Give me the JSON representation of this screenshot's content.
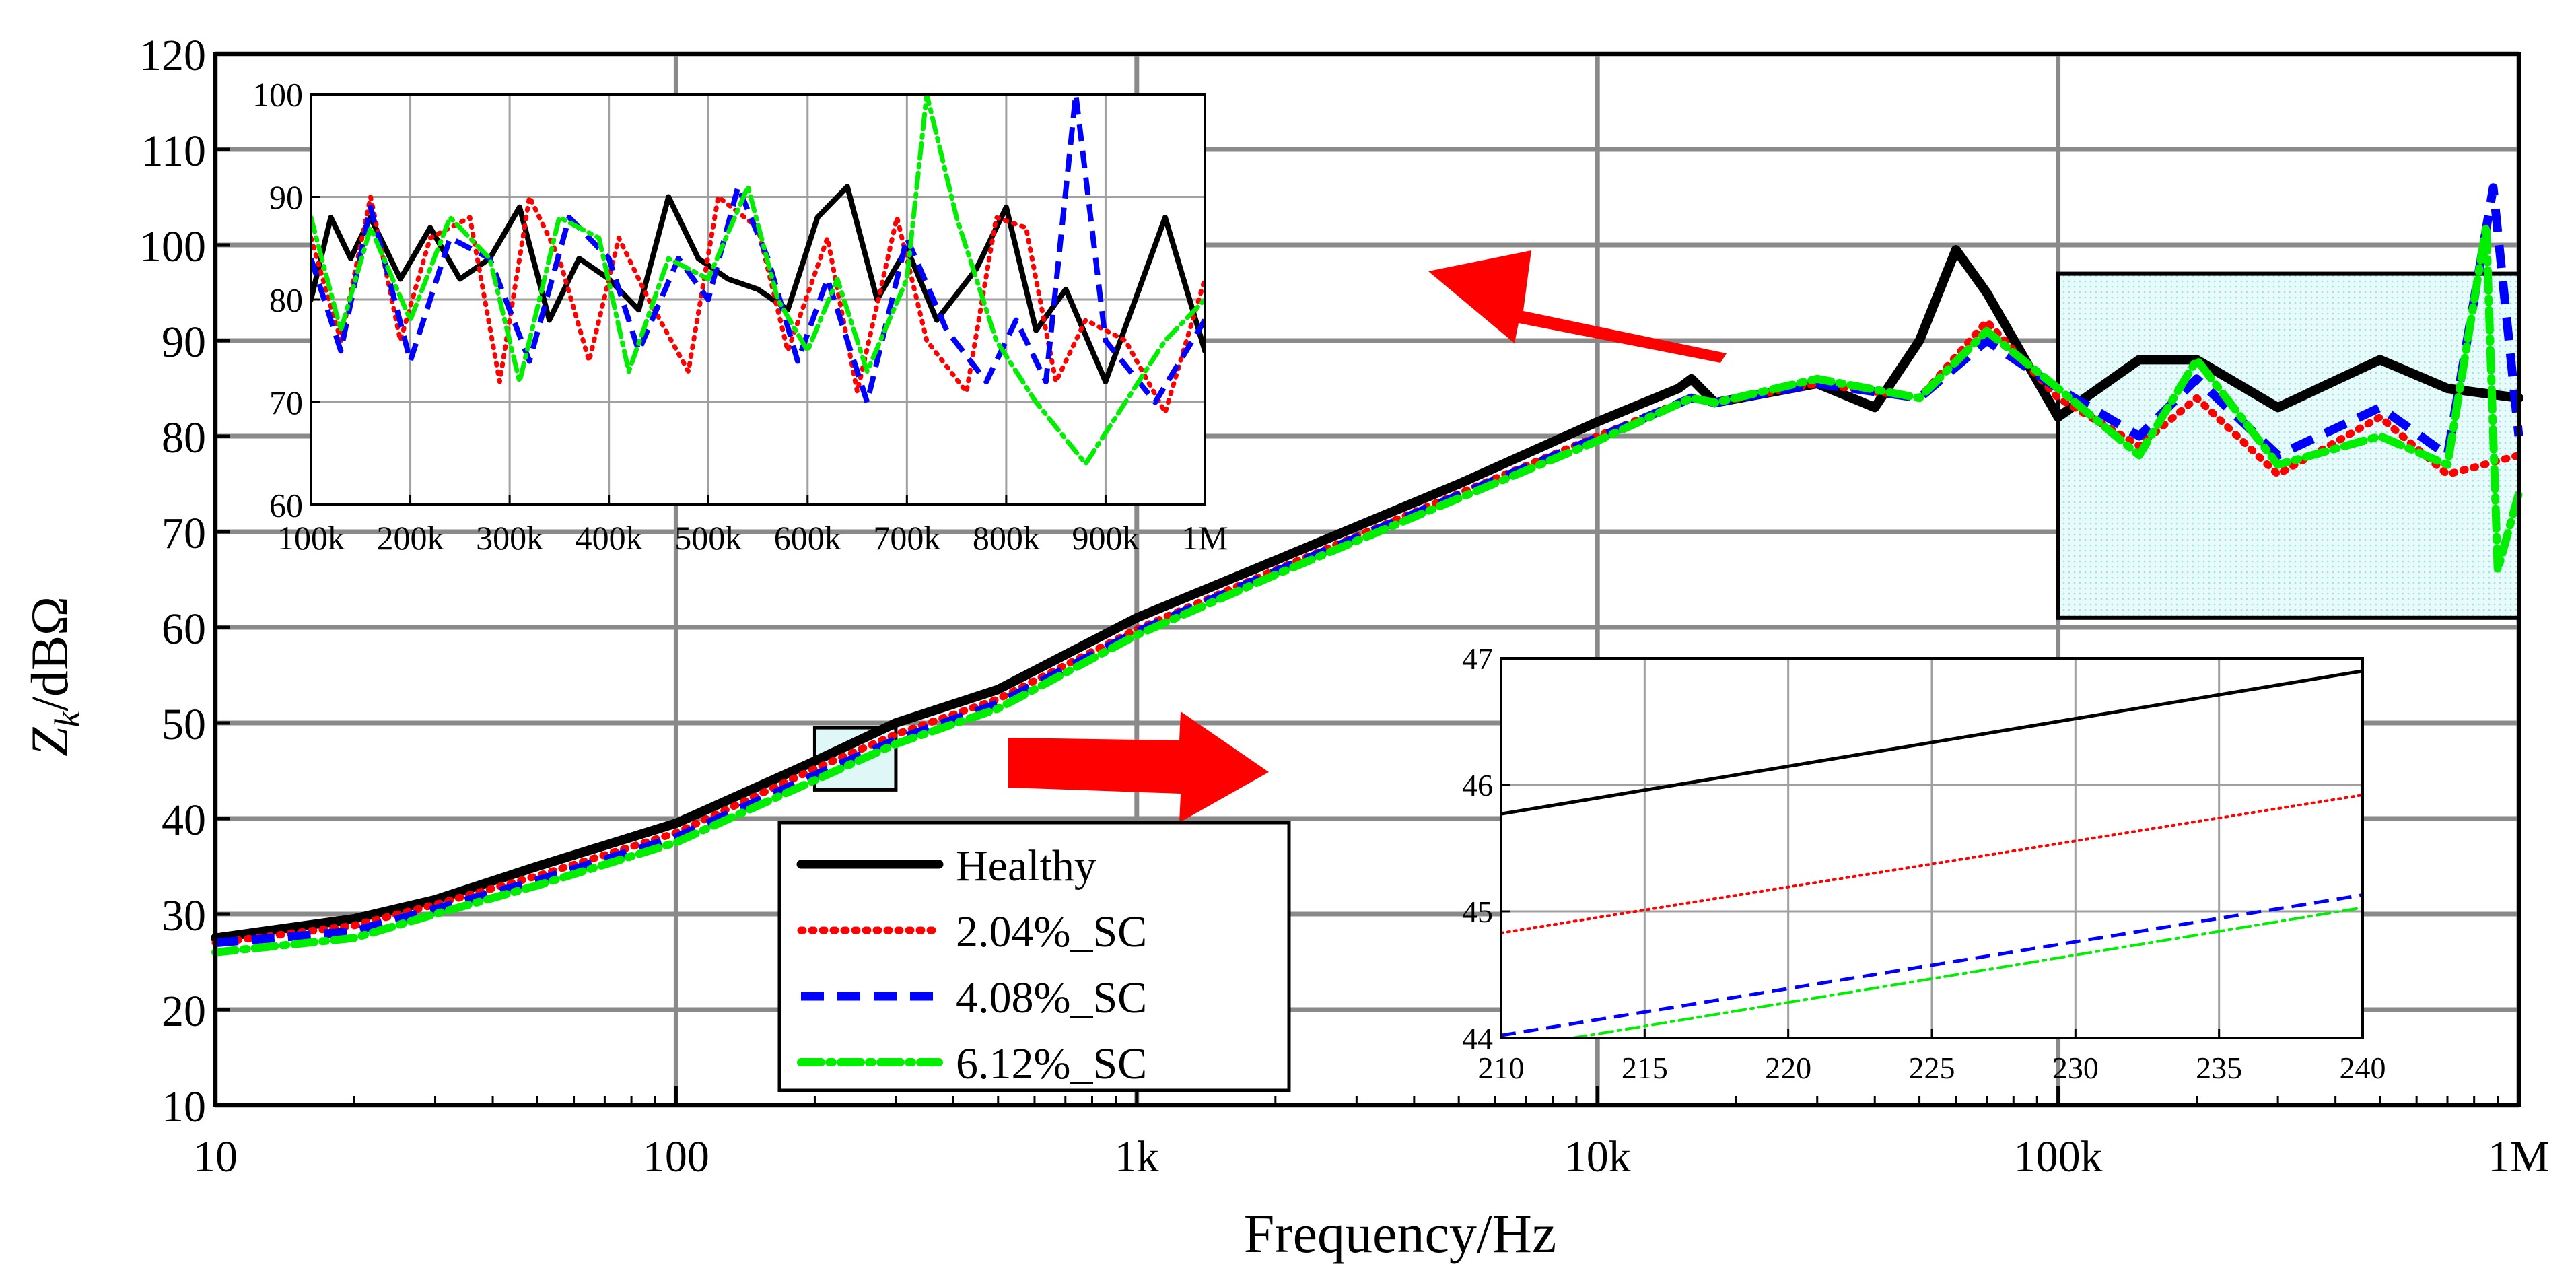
{
  "chart_data": {
    "type": "line",
    "xscale": "log",
    "xlim": [
      10,
      1000000
    ],
    "ylim": [
      10,
      120
    ],
    "xlabel": "Frequency/Hz",
    "ylabel_main": "Z",
    "ylabel_sub": "k",
    "ylabel_unit": "/dBΩ",
    "x_ticks": [
      10,
      100,
      1000,
      10000,
      100000,
      1000000
    ],
    "x_tick_labels": [
      "10",
      "100",
      "1k",
      "10k",
      "100k",
      "1M"
    ],
    "y_ticks": [
      10,
      20,
      30,
      40,
      50,
      60,
      70,
      80,
      90,
      100,
      110,
      120
    ],
    "y_tick_labels": [
      "10",
      "20",
      "30",
      "40",
      "50",
      "60",
      "70",
      "80",
      "90",
      "100",
      "110",
      "120"
    ],
    "legend": [
      "Healthy",
      "2.04%_SC",
      "4.08%_SC",
      "6.12%_SC"
    ],
    "series": [
      {
        "name": "Healthy",
        "color": "#000000",
        "style": "solid",
        "points": [
          [
            10,
            27.5
          ],
          [
            20,
            29.5
          ],
          [
            30,
            31.5
          ],
          [
            50,
            35
          ],
          [
            100,
            39.5
          ],
          [
            200,
            46
          ],
          [
            300,
            50
          ],
          [
            500,
            53.5
          ],
          [
            1000,
            61
          ],
          [
            2000,
            67
          ],
          [
            5000,
            75
          ],
          [
            10000,
            81.5
          ],
          [
            15000,
            85
          ],
          [
            16000,
            86
          ],
          [
            18000,
            83.5
          ],
          [
            30000,
            85.5
          ],
          [
            40000,
            83
          ],
          [
            50000,
            90
          ],
          [
            60000,
            99.5
          ],
          [
            70000,
            95
          ],
          [
            100000,
            82
          ],
          [
            150000,
            88
          ],
          [
            200000,
            88
          ],
          [
            300000,
            83
          ],
          [
            500000,
            88
          ],
          [
            700000,
            85
          ],
          [
            1000000,
            84
          ]
        ]
      },
      {
        "name": "2.04%_SC",
        "color": "#ff0000",
        "style": "dotted",
        "points": [
          [
            10,
            27
          ],
          [
            20,
            28.8
          ],
          [
            30,
            31
          ],
          [
            50,
            34
          ],
          [
            100,
            38.5
          ],
          [
            200,
            45.2
          ],
          [
            300,
            48.8
          ],
          [
            500,
            52.5
          ],
          [
            1000,
            59.8
          ],
          [
            2000,
            66
          ],
          [
            5000,
            74
          ],
          [
            10000,
            80
          ],
          [
            16000,
            84
          ],
          [
            18000,
            83.5
          ],
          [
            30000,
            85.5
          ],
          [
            50000,
            84
          ],
          [
            70000,
            92
          ],
          [
            100000,
            84
          ],
          [
            150000,
            79
          ],
          [
            200000,
            84
          ],
          [
            300000,
            76
          ],
          [
            500000,
            82
          ],
          [
            700000,
            76
          ],
          [
            1000000,
            78
          ]
        ]
      },
      {
        "name": "4.08%_SC",
        "color": "#0000ff",
        "style": "dashed",
        "points": [
          [
            10,
            27
          ],
          [
            20,
            28.2
          ],
          [
            30,
            30.5
          ],
          [
            50,
            33.5
          ],
          [
            100,
            38
          ],
          [
            200,
            44.5
          ],
          [
            300,
            48.2
          ],
          [
            500,
            52
          ],
          [
            1000,
            59.5
          ],
          [
            2000,
            65.8
          ],
          [
            5000,
            73.8
          ],
          [
            10000,
            79.8
          ],
          [
            16000,
            84
          ],
          [
            18000,
            83.5
          ],
          [
            30000,
            85.5
          ],
          [
            50000,
            84
          ],
          [
            70000,
            90
          ],
          [
            100000,
            85
          ],
          [
            150000,
            80
          ],
          [
            200000,
            86
          ],
          [
            300000,
            78
          ],
          [
            500000,
            83
          ],
          [
            700000,
            78
          ],
          [
            880000,
            106
          ],
          [
            1000000,
            80
          ]
        ]
      },
      {
        "name": "6.12%_SC",
        "color": "#00ee00",
        "style": "dashdot",
        "points": [
          [
            10,
            26
          ],
          [
            20,
            27.5
          ],
          [
            30,
            30
          ],
          [
            50,
            33
          ],
          [
            100,
            37.5
          ],
          [
            200,
            44
          ],
          [
            300,
            47.8
          ],
          [
            500,
            51.5
          ],
          [
            1000,
            59.2
          ],
          [
            2000,
            65.5
          ],
          [
            5000,
            73.5
          ],
          [
            10000,
            79.5
          ],
          [
            16000,
            84
          ],
          [
            18000,
            83.5
          ],
          [
            30000,
            86
          ],
          [
            50000,
            84
          ],
          [
            70000,
            91
          ],
          [
            100000,
            85
          ],
          [
            150000,
            78
          ],
          [
            200000,
            88
          ],
          [
            300000,
            77
          ],
          [
            500000,
            80
          ],
          [
            700000,
            77
          ],
          [
            850000,
            102
          ],
          [
            900000,
            66
          ],
          [
            1000000,
            74
          ]
        ]
      }
    ],
    "insets": [
      {
        "name": "inset-high-frequency",
        "xlim": [
          100000,
          1000000
        ],
        "ylim": [
          60,
          100
        ],
        "x_tick_labels": [
          "100k",
          "200k",
          "300k",
          "400k",
          "500k",
          "600k",
          "700k",
          "800k",
          "900k",
          "1M"
        ],
        "y_tick_labels": [
          "60",
          "70",
          "80",
          "90",
          "100"
        ],
        "series": [
          {
            "name": "Healthy",
            "values": [
              [
                100000,
                80
              ],
              [
                120000,
                88
              ],
              [
                140000,
                84
              ],
              [
                160000,
                88
              ],
              [
                190000,
                82
              ],
              [
                220000,
                87
              ],
              [
                250000,
                82
              ],
              [
                280000,
                84
              ],
              [
                310000,
                89
              ],
              [
                340000,
                78
              ],
              [
                370000,
                84
              ],
              [
                400000,
                82
              ],
              [
                430000,
                79
              ],
              [
                460000,
                90
              ],
              [
                490000,
                84
              ],
              [
                520000,
                82
              ],
              [
                550000,
                81
              ],
              [
                580000,
                79
              ],
              [
                610000,
                88
              ],
              [
                640000,
                91
              ],
              [
                670000,
                80
              ],
              [
                700000,
                85
              ],
              [
                730000,
                78
              ],
              [
                770000,
                83
              ],
              [
                800000,
                89
              ],
              [
                830000,
                77
              ],
              [
                860000,
                81
              ],
              [
                900000,
                72
              ],
              [
                930000,
                80
              ],
              [
                960000,
                88
              ],
              [
                1000000,
                75
              ]
            ]
          },
          {
            "name": "2.04%_SC",
            "values": [
              [
                100000,
                86
              ],
              [
                130000,
                76
              ],
              [
                160000,
                90
              ],
              [
                190000,
                76
              ],
              [
                220000,
                86
              ],
              [
                260000,
                88
              ],
              [
                290000,
                72
              ],
              [
                320000,
                90
              ],
              [
                350000,
                84
              ],
              [
                380000,
                74
              ],
              [
                410000,
                86
              ],
              [
                440000,
                80
              ],
              [
                480000,
                73
              ],
              [
                510000,
                90
              ],
              [
                550000,
                87
              ],
              [
                580000,
                75
              ],
              [
                620000,
                86
              ],
              [
                650000,
                71
              ],
              [
                690000,
                88
              ],
              [
                720000,
                76
              ],
              [
                760000,
                71
              ],
              [
                790000,
                88
              ],
              [
                820000,
                87
              ],
              [
                850000,
                72
              ],
              [
                880000,
                78
              ],
              [
                920000,
                76
              ],
              [
                960000,
                69
              ],
              [
                1000000,
                82
              ]
            ]
          },
          {
            "name": "4.08%_SC",
            "values": [
              [
                100000,
                84
              ],
              [
                130000,
                75
              ],
              [
                160000,
                89
              ],
              [
                200000,
                74
              ],
              [
                240000,
                86
              ],
              [
                280000,
                84
              ],
              [
                320000,
                74
              ],
              [
                360000,
                88
              ],
              [
                400000,
                84
              ],
              [
                430000,
                75
              ],
              [
                470000,
                84
              ],
              [
                500000,
                80
              ],
              [
                530000,
                91
              ],
              [
                560000,
                84
              ],
              [
                590000,
                74
              ],
              [
                620000,
                82
              ],
              [
                660000,
                70
              ],
              [
                700000,
                86
              ],
              [
                740000,
                77
              ],
              [
                780000,
                72
              ],
              [
                810000,
                78
              ],
              [
                840000,
                72
              ],
              [
                870000,
                100
              ],
              [
                900000,
                76
              ],
              [
                950000,
                70
              ],
              [
                1000000,
                78
              ]
            ]
          },
          {
            "name": "6.12%_SC",
            "values": [
              [
                100000,
                88
              ],
              [
                130000,
                77
              ],
              [
                160000,
                87
              ],
              [
                200000,
                78
              ],
              [
                240000,
                88
              ],
              [
                280000,
                84
              ],
              [
                310000,
                72
              ],
              [
                350000,
                88
              ],
              [
                390000,
                86
              ],
              [
                420000,
                73
              ],
              [
                460000,
                84
              ],
              [
                500000,
                82
              ],
              [
                540000,
                91
              ],
              [
                570000,
                80
              ],
              [
                600000,
                75
              ],
              [
                630000,
                82
              ],
              [
                660000,
                73
              ],
              [
                700000,
                82
              ],
              [
                720000,
                100
              ],
              [
                750000,
                88
              ],
              [
                790000,
                76
              ],
              [
                830000,
                70
              ],
              [
                880000,
                64
              ],
              [
                920000,
                70
              ],
              [
                960000,
                76
              ],
              [
                1000000,
                80
              ]
            ]
          }
        ]
      },
      {
        "name": "inset-low-frequency",
        "xlim": [
          210,
          240
        ],
        "ylim": [
          44,
          47
        ],
        "x_tick_labels": [
          "210",
          "215",
          "220",
          "225",
          "230",
          "235",
          "240"
        ],
        "y_tick_labels": [
          "44",
          "45",
          "46",
          "47"
        ],
        "series": [
          {
            "name": "Healthy",
            "values": [
              [
                210,
                45.77
              ],
              [
                240,
                46.9
              ]
            ]
          },
          {
            "name": "2.04%_SC",
            "values": [
              [
                210,
                44.83
              ],
              [
                240,
                45.92
              ]
            ]
          },
          {
            "name": "4.08%_SC",
            "values": [
              [
                210,
                44.02
              ],
              [
                240,
                45.13
              ]
            ]
          },
          {
            "name": "6.12%_SC",
            "values": [
              [
                212.5,
                44.0
              ],
              [
                240,
                45.03
              ]
            ]
          }
        ]
      }
    ]
  }
}
